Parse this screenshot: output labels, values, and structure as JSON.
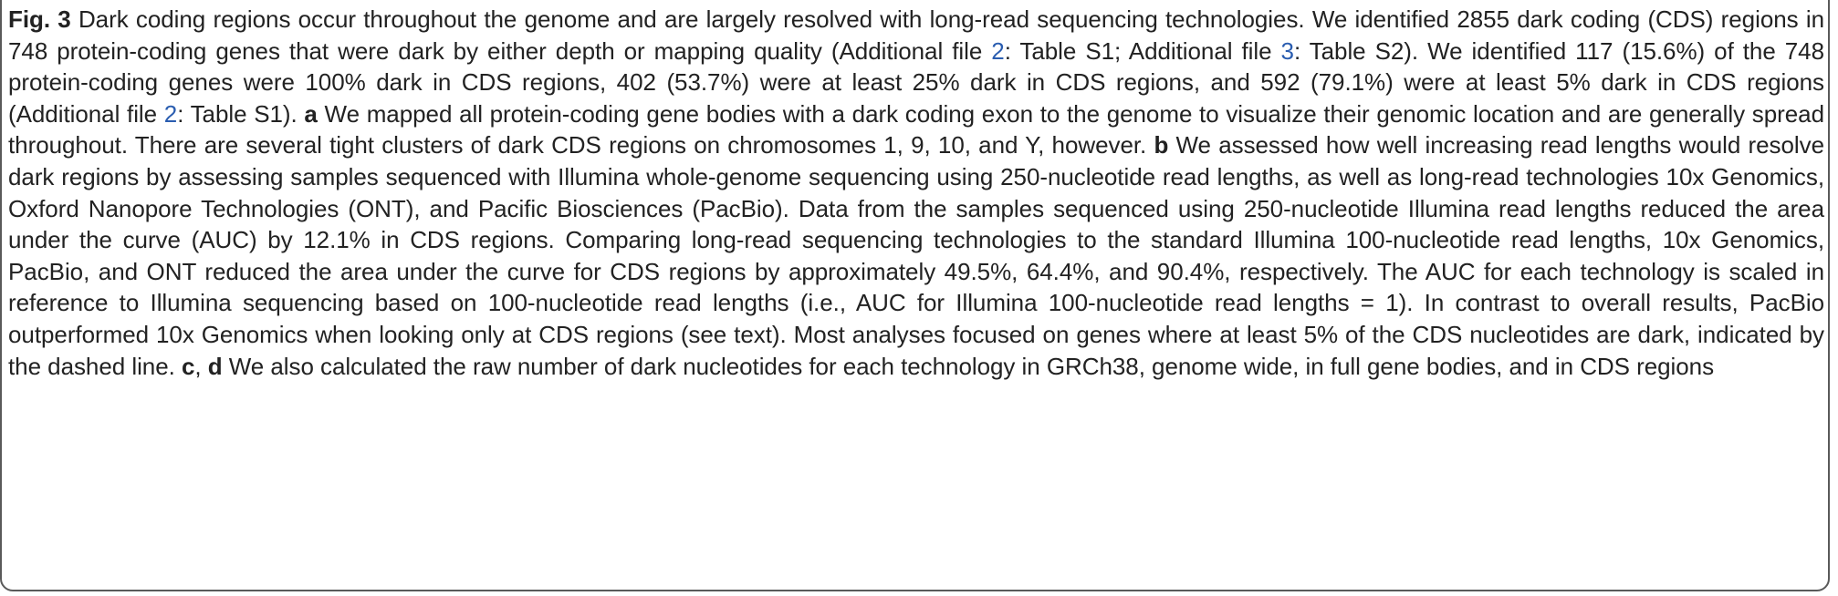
{
  "caption": {
    "label": "Fig. 3",
    "s01": " Dark coding regions occur throughout the genome and are largely resolved with long-read sequencing technologies. We identified 2855 dark coding (CDS) regions in 748 protein-coding genes that were dark by either depth or mapping quality (Additional file ",
    "ref1": "2",
    "s02": ": Table S1; Additional file ",
    "ref2": "3",
    "s03": ": Table S2). We identified 117 (15.6%) of the 748 protein-coding genes were 100% dark in CDS regions, 402 (53.7%) were at least 25% dark in CDS regions, and 592 (79.1%) were at least 5% dark in CDS regions (Additional file ",
    "ref3": "2",
    "s04": ": Table S1). ",
    "panel_a": "a",
    "s05": " We mapped all protein-coding gene bodies with a dark coding exon to the genome to visualize their genomic location and are generally spread throughout. There are several tight clusters of dark CDS regions on chromosomes 1, 9, 10, and Y, however. ",
    "panel_b": "b",
    "s06": " We assessed how well increasing read lengths would resolve dark regions by assessing samples sequenced with Illumina whole-genome sequencing using 250-nucleotide read lengths, as well as long-read technologies 10x Genomics, Oxford Nanopore Technologies (ONT), and Pacific Biosciences (PacBio). Data from the samples sequenced using 250-nucleotide Illumina read lengths reduced the area under the curve (AUC) by 12.1% in CDS regions. Comparing long-read sequencing technologies to the standard Illumina 100-nucleotide read lengths, 10x Genomics, PacBio, and ONT reduced the area under the curve for CDS regions by approximately 49.5%, 64.4%, and 90.4%, respectively. The AUC for each technology is scaled in reference to Illumina sequencing based on 100-nucleotide read lengths (i.e., AUC for Illumina 100-nucleotide read lengths = 1). In contrast to overall results, PacBio outperformed 10x Genomics when looking only at CDS regions (see text). Most analyses focused on genes where at least 5% of the CDS nucleotides are dark, indicated by the dashed line. ",
    "panel_c": "c",
    "s07": ", ",
    "panel_d": "d",
    "s08": " We also calculated the raw number of dark nucleotides for each technology in GRCh38, genome wide, in full gene bodies, and in CDS regions"
  },
  "colors": {
    "text": "#222222",
    "link": "#2a5db0",
    "border": "#5a5a5a"
  }
}
